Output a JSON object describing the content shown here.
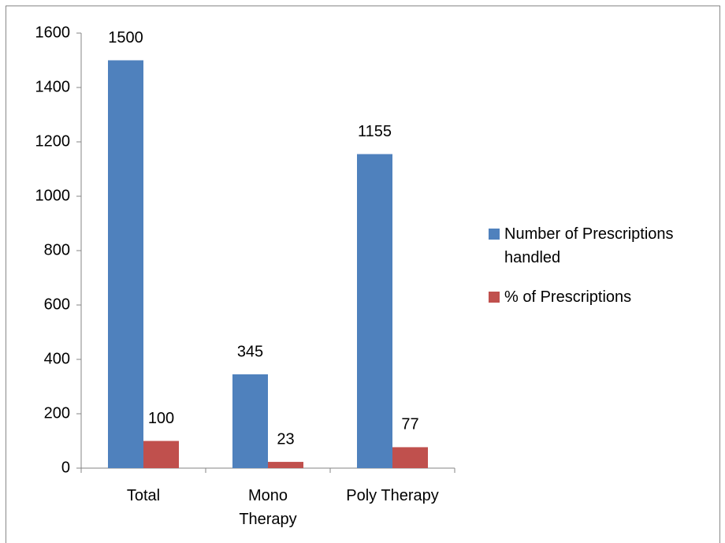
{
  "chart_data": {
    "type": "bar",
    "categories": [
      "Total",
      "Mono Therapy",
      "Poly Therapy"
    ],
    "series": [
      {
        "name": "Number of Prescriptions handled",
        "color": "#4f81bd",
        "values": [
          1500,
          345,
          1155
        ]
      },
      {
        "name": "% of Prescriptions",
        "color": "#c0504d",
        "values": [
          100,
          23,
          77
        ]
      }
    ],
    "ylim": [
      0,
      1600
    ],
    "yticks": [
      0,
      200,
      400,
      600,
      800,
      1000,
      1200,
      1400,
      1600
    ],
    "legend": "right",
    "grid": false
  }
}
